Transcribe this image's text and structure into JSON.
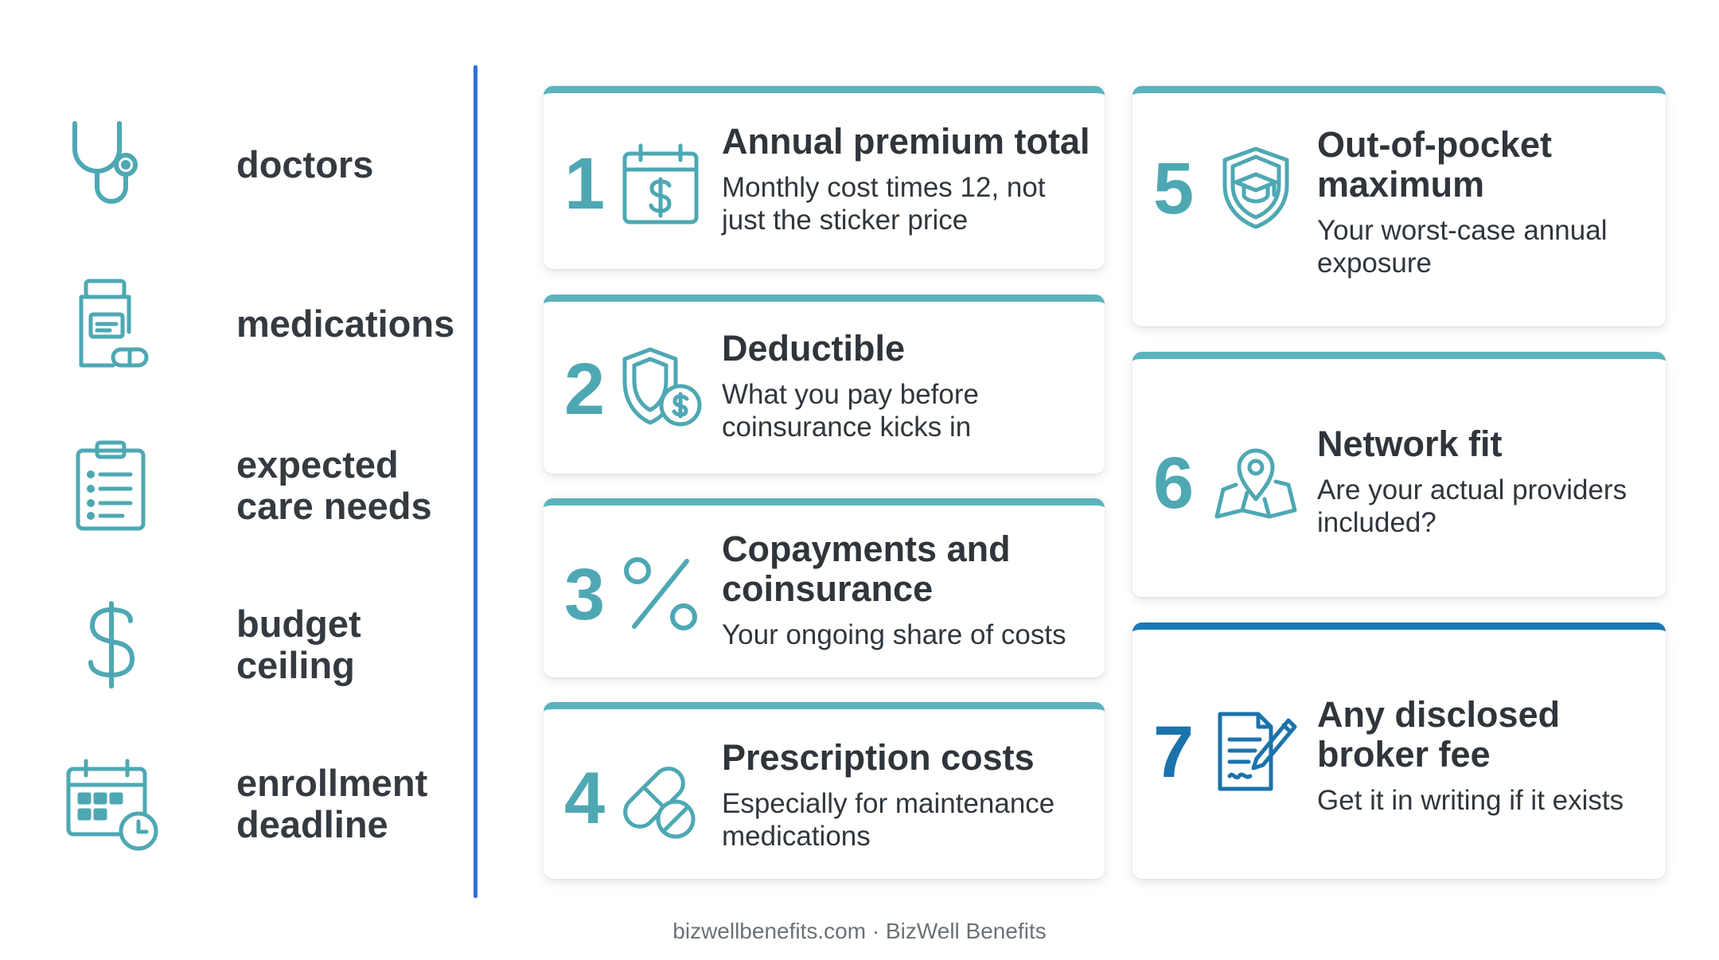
{
  "left_list": [
    {
      "icon": "stethoscope-icon",
      "label_lines": [
        "doctors"
      ]
    },
    {
      "icon": "medication-bottle-icon",
      "label_lines": [
        "medications"
      ]
    },
    {
      "icon": "clipboard-checklist-icon",
      "label_lines": [
        "expected",
        "care needs"
      ]
    },
    {
      "icon": "dollar-sign-icon",
      "label_lines": [
        "budget",
        "ceiling"
      ]
    },
    {
      "icon": "calendar-clock-icon",
      "label_lines": [
        "enrollment",
        "deadline"
      ]
    }
  ],
  "cards": [
    {
      "number": "1",
      "icon": "calendar-dollar-icon",
      "title_lines": [
        "Annual premium total"
      ],
      "desc_lines": [
        "Monthly cost times 12, not",
        "just the sticker price"
      ]
    },
    {
      "number": "2",
      "icon": "shield-dollar-icon",
      "title_lines": [
        "Deductible"
      ],
      "desc_lines": [
        "What you pay before",
        "coinsurance kicks in"
      ]
    },
    {
      "number": "3",
      "icon": "percent-icon",
      "title_lines": [
        "Copayments and",
        "coinsurance"
      ],
      "desc_lines": [
        "Your ongoing share of costs"
      ]
    },
    {
      "number": "4",
      "icon": "pills-icon",
      "title_lines": [
        "Prescription costs"
      ],
      "desc_lines": [
        "Especially for maintenance",
        "medications"
      ]
    },
    {
      "number": "5",
      "icon": "shield-graduation-cap-icon",
      "title_lines": [
        "Out-of-pocket",
        "maximum"
      ],
      "desc_lines": [
        "Your worst-case annual",
        "exposure"
      ]
    },
    {
      "number": "6",
      "icon": "map-pin-icon",
      "title_lines": [
        "Network fit"
      ],
      "desc_lines": [
        "Are your actual providers",
        "included?"
      ]
    },
    {
      "number": "7",
      "icon": "document-pen-icon",
      "title_lines": [
        "Any disclosed",
        "broker fee"
      ],
      "desc_lines": [
        "Get it in writing if it exists"
      ]
    }
  ],
  "footer": "bizwellbenefits.com · BizWell Benefits",
  "colors": {
    "teal": "#4ea8b3",
    "dark_blue": "#1b73ac",
    "divider": "#2f6fdb",
    "text": "#2f353b"
  }
}
